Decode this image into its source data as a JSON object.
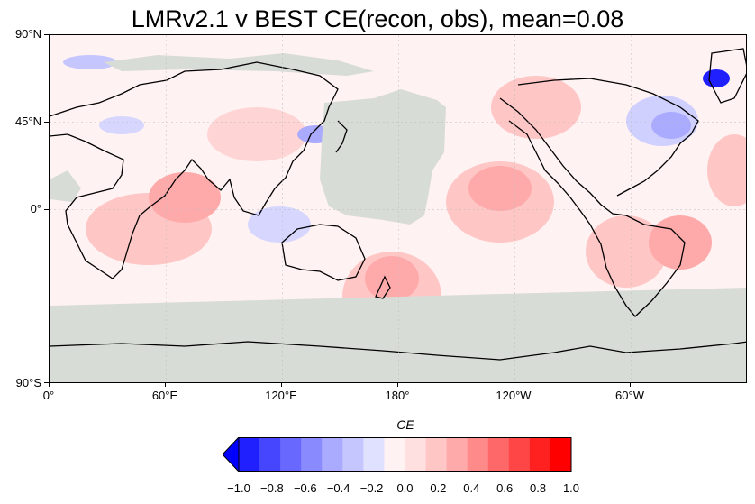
{
  "title": "LMRv2.1 v BEST CE(recon, obs), mean=0.08",
  "map": {
    "projection": "equirectangular",
    "central_longitude": 180,
    "ocean_color": "#fff2f2",
    "land_mask_color": "#d8dcd6",
    "lat_ticks": [
      "90°N",
      "45°N",
      "0°",
      "90°S"
    ],
    "lon_ticks": [
      "0°",
      "60°E",
      "120°E",
      "180°",
      "120°W",
      "60°W"
    ]
  },
  "colorbar": {
    "label": "CE",
    "tick_labels": [
      "−1.0",
      "−0.8",
      "−0.6",
      "−0.4",
      "−0.2",
      "0.0",
      "0.2",
      "0.4",
      "0.6",
      "0.8",
      "1.0"
    ],
    "colors": [
      "#0000ff",
      "#2020ff",
      "#4646ff",
      "#6868ff",
      "#8a8aff",
      "#aaaaff",
      "#c6c6ff",
      "#e0e0ff",
      "#fff2f2",
      "#ffe0e0",
      "#ffc6c6",
      "#ffaaaa",
      "#ff8a8a",
      "#ff6868",
      "#ff4646",
      "#ff2020",
      "#ff0000"
    ],
    "extend": "min"
  }
}
